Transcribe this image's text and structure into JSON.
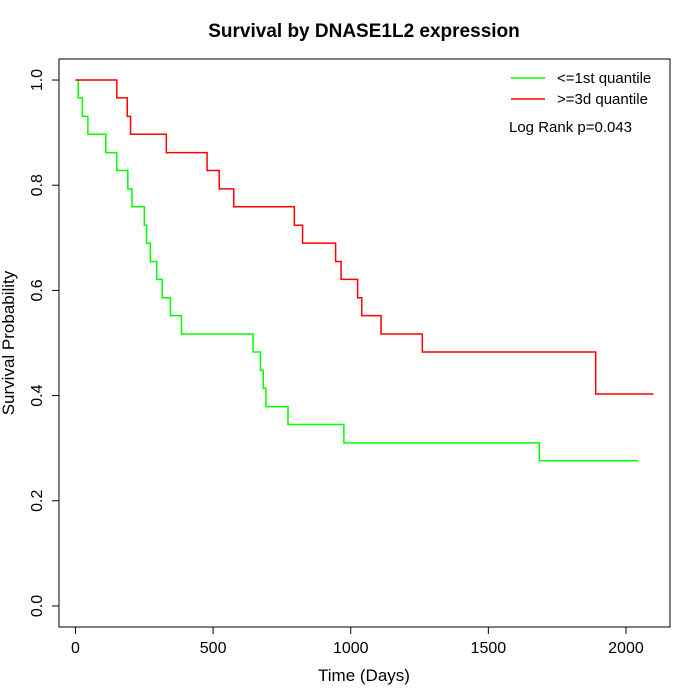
{
  "chart_data": {
    "type": "line",
    "title": "Survival by DNASE1L2 expression",
    "xlabel": "Time (Days)",
    "ylabel": "Survival Probability",
    "xlim": [
      -60,
      2160
    ],
    "ylim": [
      -0.04,
      1.04
    ],
    "xticks": [
      0,
      500,
      1000,
      1500,
      2000
    ],
    "yticks": [
      0.0,
      0.2,
      0.4,
      0.6,
      0.8,
      1.0
    ],
    "ytick_labels": [
      "0.0",
      "0.2",
      "0.4",
      "0.6",
      "0.8",
      "1.0"
    ],
    "grid": false,
    "legend_position": "top-right",
    "annotation": "Log Rank p=0.043",
    "series": [
      {
        "name": "<=1st quantile",
        "color": "#00ff00",
        "step": "post",
        "points": [
          [
            0,
            1.0
          ],
          [
            10,
            0.966
          ],
          [
            25,
            0.931
          ],
          [
            45,
            0.897
          ],
          [
            110,
            0.862
          ],
          [
            150,
            0.828
          ],
          [
            190,
            0.793
          ],
          [
            205,
            0.759
          ],
          [
            250,
            0.724
          ],
          [
            258,
            0.69
          ],
          [
            272,
            0.655
          ],
          [
            295,
            0.621
          ],
          [
            315,
            0.586
          ],
          [
            345,
            0.552
          ],
          [
            385,
            0.517
          ],
          [
            645,
            0.483
          ],
          [
            672,
            0.448
          ],
          [
            682,
            0.414
          ],
          [
            692,
            0.379
          ],
          [
            772,
            0.345
          ],
          [
            975,
            0.31
          ],
          [
            1685,
            0.276
          ],
          [
            2045,
            0.276
          ]
        ]
      },
      {
        "name": ">=3d quantile",
        "color": "#ff0000",
        "step": "post",
        "points": [
          [
            0,
            1.0
          ],
          [
            150,
            0.966
          ],
          [
            188,
            0.931
          ],
          [
            200,
            0.897
          ],
          [
            330,
            0.862
          ],
          [
            478,
            0.828
          ],
          [
            522,
            0.793
          ],
          [
            575,
            0.759
          ],
          [
            795,
            0.724
          ],
          [
            825,
            0.69
          ],
          [
            945,
            0.655
          ],
          [
            965,
            0.621
          ],
          [
            1025,
            0.586
          ],
          [
            1040,
            0.552
          ],
          [
            1110,
            0.517
          ],
          [
            1260,
            0.483
          ],
          [
            1890,
            0.403
          ],
          [
            2100,
            0.403
          ]
        ]
      }
    ]
  }
}
